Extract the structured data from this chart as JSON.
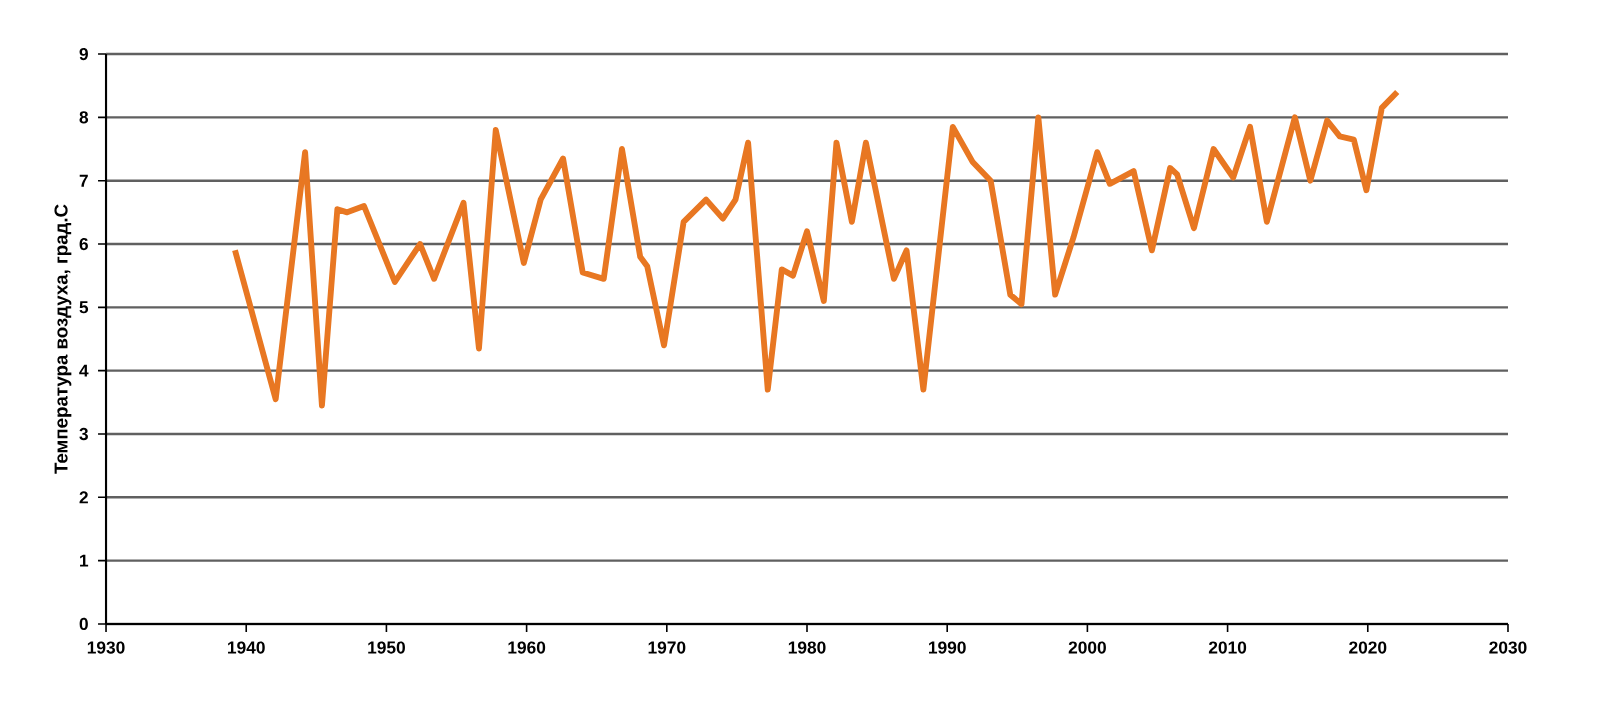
{
  "chart_data": {
    "type": "line",
    "ylabel": "Температура воздуха, град.С",
    "x": [
      1939.2,
      1942.1,
      1944.2,
      1945.4,
      1946.5,
      1947.2,
      1948.4,
      1950.6,
      1952.4,
      1953.4,
      1955.5,
      1956.6,
      1957.8,
      1959.8,
      1961.0,
      1962.6,
      1964.0,
      1965.5,
      1966.8,
      1968.1,
      1968.6,
      1969.8,
      1971.2,
      1972.8,
      1974.0,
      1974.9,
      1975.8,
      1977.2,
      1978.2,
      1979.0,
      1980.0,
      1981.2,
      1982.1,
      1983.2,
      1984.2,
      1986.2,
      1987.1,
      1988.3,
      1990.4,
      1991.8,
      1993.1,
      1994.5,
      1995.3,
      1996.5,
      1997.7,
      1999.0,
      2000.7,
      2001.6,
      2003.3,
      2004.6,
      2005.9,
      2006.4,
      2007.6,
      2009.0,
      2010.4,
      2011.6,
      2012.8,
      2014.8,
      2015.9,
      2017.1,
      2018.0,
      2019.0,
      2019.9,
      2021.0,
      2022.1
    ],
    "series": [
      {
        "color": "#e87722",
        "values": [
          5.9,
          3.55,
          7.45,
          3.45,
          6.55,
          6.5,
          6.6,
          5.4,
          6.0,
          5.45,
          6.65,
          4.35,
          7.8,
          5.7,
          6.7,
          7.35,
          5.55,
          5.45,
          7.5,
          5.8,
          5.65,
          4.4,
          6.35,
          6.7,
          6.4,
          6.7,
          7.6,
          3.7,
          5.6,
          5.5,
          6.2,
          5.1,
          7.6,
          6.35,
          7.6,
          5.45,
          5.9,
          3.7,
          7.85,
          7.3,
          7.0,
          5.2,
          5.05,
          8.0,
          5.2,
          6.1,
          7.45,
          6.95,
          7.15,
          5.9,
          7.2,
          7.1,
          6.25,
          7.5,
          7.05,
          7.85,
          6.35,
          8.0,
          7.0,
          7.95,
          7.7,
          7.65,
          6.85,
          8.15,
          8.4
        ]
      }
    ],
    "xlim": [
      1930,
      2030
    ],
    "xticks": [
      1930,
      1940,
      1950,
      1960,
      1970,
      1980,
      1990,
      2000,
      2010,
      2020,
      2030
    ],
    "ylim": [
      0,
      9
    ],
    "yticks": [
      0,
      1,
      2,
      3,
      4,
      5,
      6,
      7,
      8,
      9
    ],
    "grid": "y",
    "marker": "none",
    "line_style": "solid"
  }
}
